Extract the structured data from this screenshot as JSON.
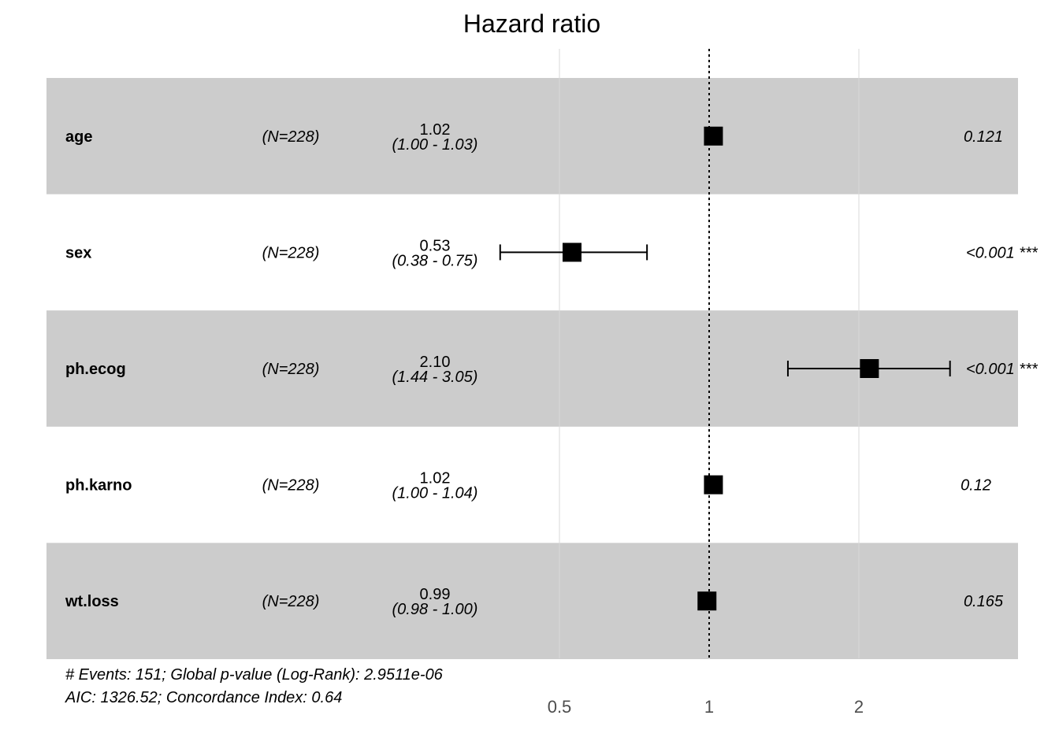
{
  "chart_data": {
    "type": "forest",
    "title": "Hazard ratio",
    "x_scale": "log",
    "ticks": [
      {
        "value": 0.5,
        "label": "0.5"
      },
      {
        "value": 1,
        "label": "1"
      },
      {
        "value": 2,
        "label": "2"
      }
    ],
    "reference_line": 1,
    "rows": [
      {
        "variable": "age",
        "n": "(N=228)",
        "hr": 1.02,
        "lower": 1.0,
        "upper": 1.03,
        "hr_label": "1.02",
        "ci_label": "(1.00 - 1.03)",
        "p_label": "0.121",
        "shaded": true
      },
      {
        "variable": "sex",
        "n": "(N=228)",
        "hr": 0.53,
        "lower": 0.38,
        "upper": 0.75,
        "hr_label": "0.53",
        "ci_label": "(0.38 - 0.75)",
        "p_label": "<0.001 ***",
        "shaded": false
      },
      {
        "variable": "ph.ecog",
        "n": "(N=228)",
        "hr": 2.1,
        "lower": 1.44,
        "upper": 3.05,
        "hr_label": "2.10",
        "ci_label": "(1.44 - 3.05)",
        "p_label": "<0.001 ***",
        "shaded": true
      },
      {
        "variable": "ph.karno",
        "n": "(N=228)",
        "hr": 1.02,
        "lower": 1.0,
        "upper": 1.04,
        "hr_label": "1.02",
        "ci_label": "(1.00 - 1.04)",
        "p_label": "0.12",
        "shaded": false
      },
      {
        "variable": "wt.loss",
        "n": "(N=228)",
        "hr": 0.99,
        "lower": 0.98,
        "upper": 1.0,
        "hr_label": "0.99",
        "ci_label": "(0.98 - 1.00)",
        "p_label": "0.165",
        "shaded": true
      }
    ],
    "footnote_line1": "# Events: 151; Global p-value (Log-Rank): 2.9511e-06",
    "footnote_line2": "AIC: 1326.52; Concordance Index: 0.64",
    "colors": {
      "row_shade": "#cccccc",
      "grid": "#d9d9d9",
      "marker": "#000000",
      "tick_text": "#4d4d4d"
    }
  }
}
